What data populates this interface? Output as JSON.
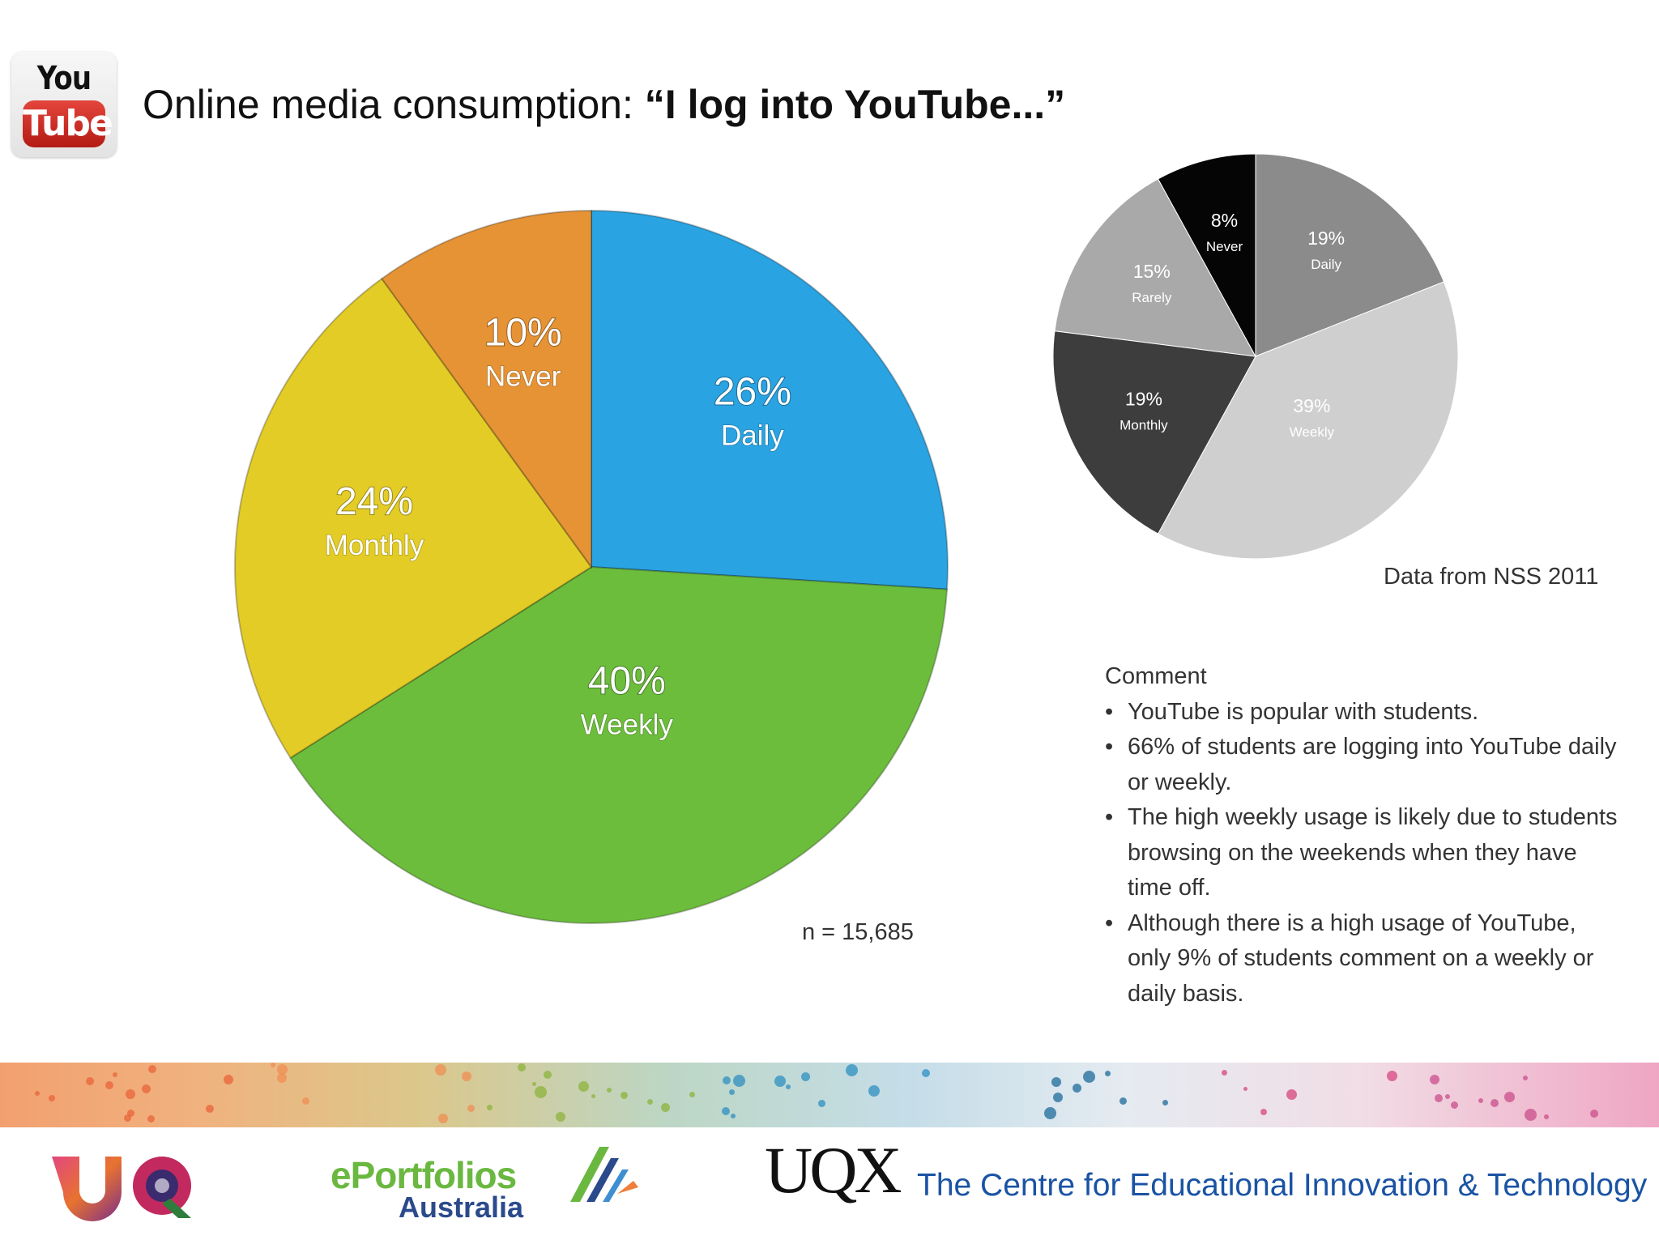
{
  "header": {
    "logo_you": "You",
    "logo_tube": "Tube",
    "title_prefix": "Online media consumption: ",
    "title_quote": "“I log into YouTube...”"
  },
  "chart_data": [
    {
      "type": "pie",
      "title": "",
      "slices": [
        {
          "value": 26,
          "percent_label": "26%",
          "category": "Daily",
          "color": "#2aa3e2"
        },
        {
          "value": 40,
          "percent_label": "40%",
          "category": "Weekly",
          "color": "#6cbd3c"
        },
        {
          "value": 24,
          "percent_label": "24%",
          "category": "Monthly",
          "color": "#e4cc26"
        },
        {
          "value": 10,
          "percent_label": "10%",
          "category": "Never",
          "color": "#e69335"
        }
      ],
      "start": "12 o'clock",
      "direction": "clockwise",
      "note": "n = 15,685"
    },
    {
      "type": "pie",
      "title": "",
      "slices": [
        {
          "value": 19,
          "percent_label": "19%",
          "category": "Daily",
          "color": "#8b8b8b"
        },
        {
          "value": 39,
          "percent_label": "39%",
          "category": "Weekly",
          "color": "#cfcfcf"
        },
        {
          "value": 19,
          "percent_label": "19%",
          "category": "Monthly",
          "color": "#3d3d3d"
        },
        {
          "value": 15,
          "percent_label": "15%",
          "category": "Rarely",
          "color": "#a9a9a9"
        },
        {
          "value": 8,
          "percent_label": "8%",
          "category": "Never",
          "color": "#050505"
        }
      ],
      "start": "12 o'clock",
      "direction": "clockwise",
      "note": "Data from NSS 2011"
    }
  ],
  "comment": {
    "heading": "Comment",
    "bullets": [
      "YouTube is popular with students.",
      "66% of students are logging into YouTube daily or weekly.",
      "The high weekly usage is likely due to students browsing on the weekends when they have time off.",
      "Although there is a high usage of YouTube, only 9% of students comment on a weekly or daily basis."
    ]
  },
  "footer": {
    "eportfolios_name": "ePortfolios",
    "eportfolios_sub": "Australia",
    "uqx": "UQX",
    "centre": "The Centre for Educational Innovation & Technology"
  }
}
